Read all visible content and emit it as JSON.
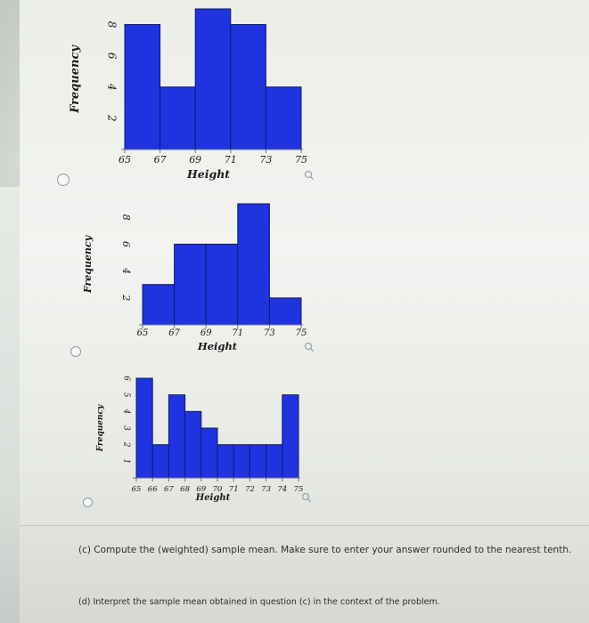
{
  "chart_data": [
    {
      "type": "bar",
      "ylabel": "Frequency",
      "xlabel": "Height",
      "xticks": [
        "65",
        "67",
        "69",
        "71",
        "73",
        "75"
      ],
      "yticks": [
        "2",
        "4",
        "6",
        "8"
      ],
      "bin_edges": [
        65,
        67,
        69,
        71,
        73,
        75
      ],
      "values": [
        8,
        4,
        9,
        8,
        4
      ],
      "ylim": [
        0,
        9
      ],
      "bar_color": "#1f33e0"
    },
    {
      "type": "bar",
      "ylabel": "Frequency",
      "xlabel": "Height",
      "xticks": [
        "65",
        "67",
        "69",
        "71",
        "73",
        "75"
      ],
      "yticks": [
        "2",
        "4",
        "6",
        "8"
      ],
      "bin_edges": [
        65,
        67,
        69,
        71,
        73,
        75
      ],
      "values": [
        3,
        6,
        6,
        9,
        2
      ],
      "ylim": [
        0,
        9
      ],
      "bar_color": "#1f33e0"
    },
    {
      "type": "bar",
      "ylabel": "Frequency",
      "xlabel": "Height",
      "xticks": [
        "65",
        "66",
        "67",
        "68",
        "69",
        "70",
        "71",
        "72",
        "73",
        "74",
        "75"
      ],
      "yticks": [
        "1",
        "2",
        "3",
        "4",
        "5",
        "6"
      ],
      "bin_edges": [
        65,
        66,
        67,
        68,
        69,
        70,
        71,
        72,
        73,
        74,
        75
      ],
      "values": [
        6,
        2,
        5,
        4,
        3,
        2,
        2,
        2,
        2,
        5
      ],
      "ylim": [
        0,
        6
      ],
      "bar_color": "#1f33e0"
    }
  ],
  "questions": {
    "c": "(c) Compute the (weighted) sample mean. Make sure to enter your answer rounded to the nearest tenth.",
    "d": "(d) Interpret the sample mean obtained in question (c) in the context of the problem."
  },
  "icons": [
    "magnifier-icon"
  ]
}
